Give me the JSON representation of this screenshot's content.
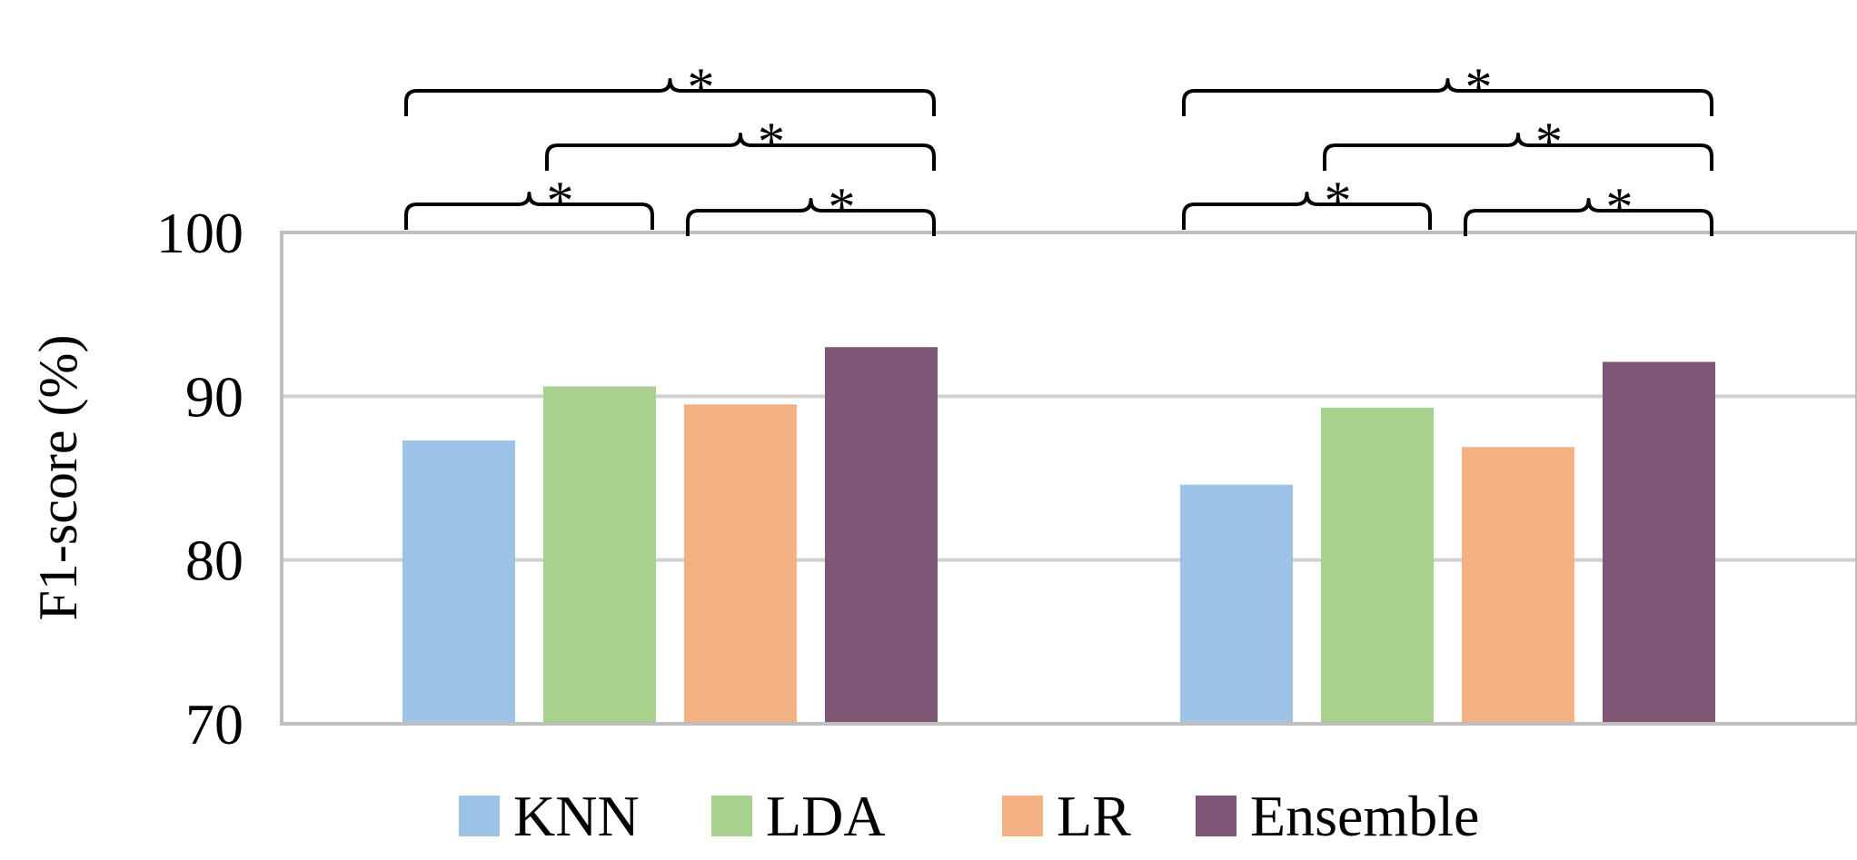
{
  "chart_data": {
    "type": "bar",
    "title": "",
    "xlabel": "",
    "ylabel": "F1-score (%)",
    "ylim": [
      70,
      100
    ],
    "yticks": [
      "70",
      "80",
      "90",
      "100"
    ],
    "grid": true,
    "legend_position": "bottom",
    "categories": [
      "",
      ""
    ],
    "series": [
      {
        "name": "KNN",
        "color": "#9dc3e6",
        "values": [
          87.3,
          84.6
        ]
      },
      {
        "name": "LDA",
        "color": "#a9d18e",
        "values": [
          90.6,
          89.3
        ]
      },
      {
        "name": "LR",
        "color": "#f4b183",
        "values": [
          89.5,
          86.9
        ]
      },
      {
        "name": "Ensemble",
        "color": "#7e5675",
        "values": [
          93.0,
          92.1
        ]
      }
    ],
    "significance": [
      {
        "group": 0,
        "from": "KNN",
        "to": "Ensemble",
        "label": "*"
      },
      {
        "group": 0,
        "from": "LDA",
        "to": "Ensemble",
        "label": "*"
      },
      {
        "group": 0,
        "from": "KNN",
        "to": "LDA",
        "label": "*"
      },
      {
        "group": 0,
        "from": "LR",
        "to": "Ensemble",
        "label": "*"
      },
      {
        "group": 1,
        "from": "KNN",
        "to": "Ensemble",
        "label": "*"
      },
      {
        "group": 1,
        "from": "LDA",
        "to": "Ensemble",
        "label": "*"
      },
      {
        "group": 1,
        "from": "KNN",
        "to": "LDA",
        "label": "*"
      },
      {
        "group": 1,
        "from": "LR",
        "to": "Ensemble",
        "label": "*"
      }
    ]
  }
}
